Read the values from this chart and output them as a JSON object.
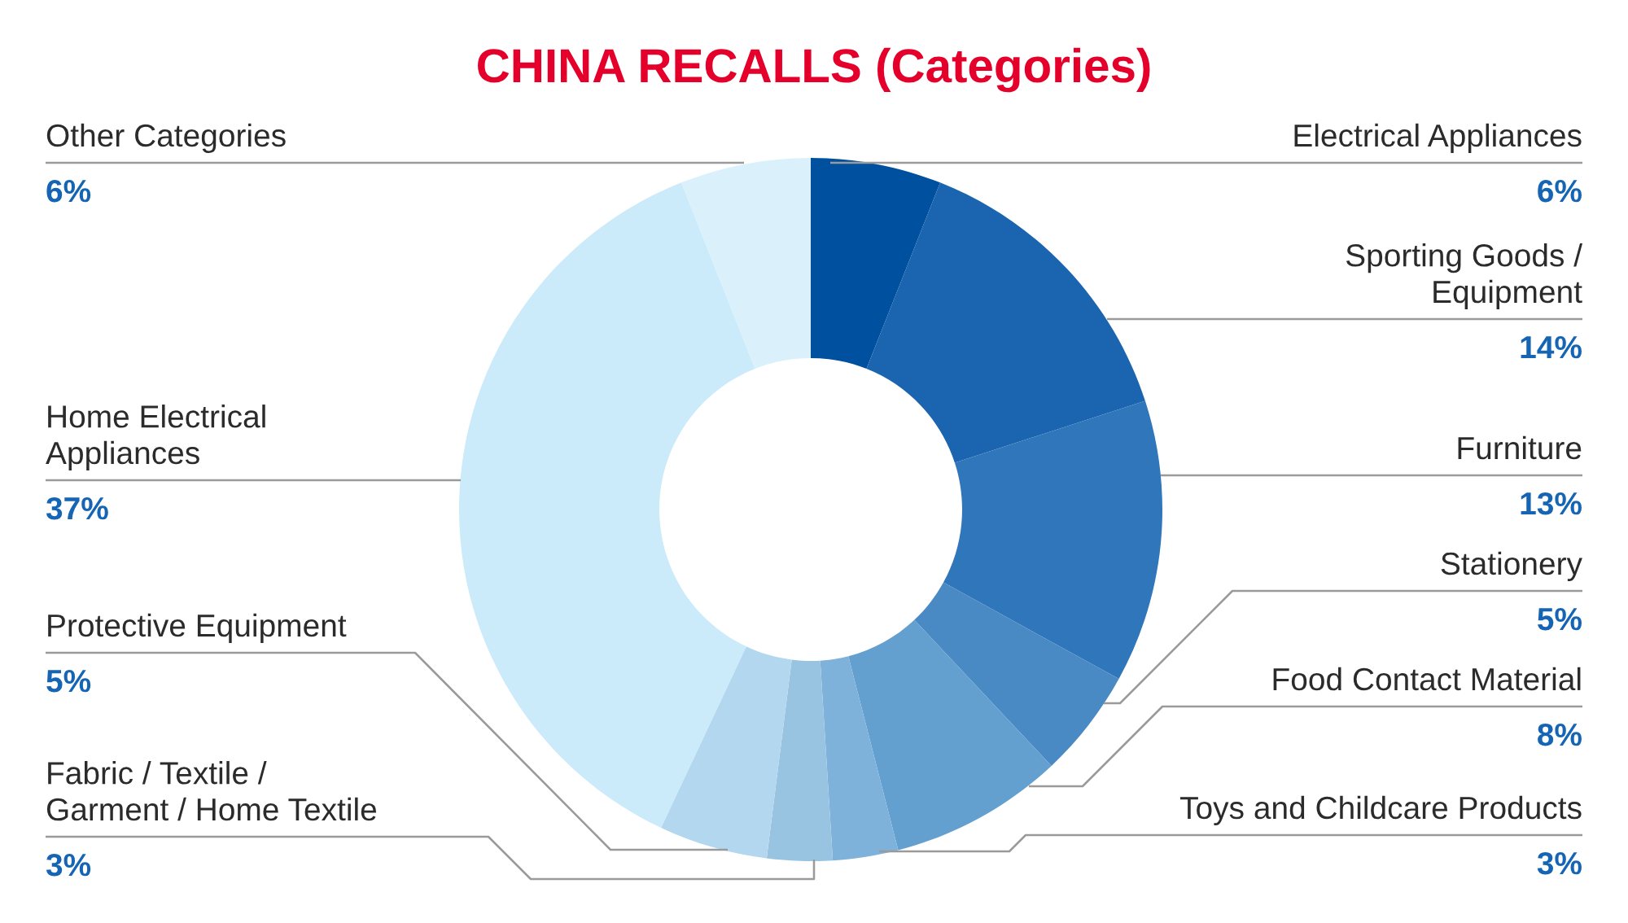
{
  "chart_data": {
    "type": "donut",
    "title": "CHINA RECALLS (Categories)",
    "categories": [
      "Electrical Appliances",
      "Sporting Goods /\nEquipment",
      "Furniture",
      "Stationery",
      "Food Contact Material",
      "Toys and Childcare Products",
      "Fabric / Textile /\nGarment / Home Textile",
      "Protective Equipment",
      "Home Electrical\nAppliances",
      "Other Categories"
    ],
    "values": [
      6,
      14,
      13,
      5,
      8,
      3,
      3,
      5,
      37,
      6
    ],
    "colors": [
      "#0050a0",
      "#1a64b0",
      "#3076ba",
      "#4a8ac4",
      "#64a0cf",
      "#7fb2db",
      "#98c4e2",
      "#b2d7ee",
      "#cbeafa",
      "#daf0fb"
    ],
    "value_labels": [
      "6%",
      "14%",
      "13%",
      "5%",
      "8%",
      "3%",
      "3%",
      "5%",
      "37%",
      "6%"
    ]
  }
}
